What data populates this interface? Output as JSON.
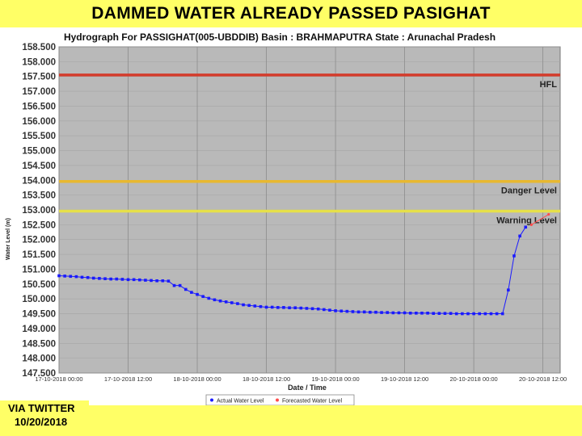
{
  "banner": {
    "headline": "DAMMED WATER ALREADY PASSED PASIGHAT"
  },
  "credit": {
    "line1": "VIA TWITTER",
    "line2": "10/20/2018"
  },
  "colors": {
    "banner": "#ffff66",
    "plot_bg": "#b9b9b9",
    "actual": "#1a1aff",
    "forecast": "#ff4d4d",
    "hfl": "#d43c2c",
    "danger": "#e8b830",
    "warning": "#e6e04a"
  },
  "chart_data": {
    "type": "line",
    "title": "Hydrograph For PASSIGHAT(005-UBDDIB) Basin : BRAHMAPUTRA State : Arunachal Pradesh",
    "xlabel": "Date / Time",
    "ylabel": "Water Level (m)",
    "ylim": [
      147.5,
      158.5
    ],
    "y_ticks": [
      "147.500",
      "148.000",
      "148.500",
      "149.000",
      "149.500",
      "150.000",
      "150.500",
      "151.000",
      "151.500",
      "152.000",
      "152.500",
      "153.000",
      "153.500",
      "154.000",
      "154.500",
      "155.000",
      "155.500",
      "156.000",
      "156.500",
      "157.000",
      "157.500",
      "158.000",
      "158.500"
    ],
    "x_ticks": [
      "17-10-2018 00:00",
      "17-10-2018 12:00",
      "18-10-2018 00:00",
      "18-10-2018 12:00",
      "19-10-2018 00:00",
      "19-10-2018 12:00",
      "20-10-2018 00:00",
      "20-10-2018 12:00"
    ],
    "x_range_hours": [
      0,
      87
    ],
    "grid": true,
    "legend_position": "bottom",
    "reference_lines": [
      {
        "name": "HFL",
        "value": 157.55
      },
      {
        "name": "Danger Level",
        "value": 153.96
      },
      {
        "name": "Warning Level",
        "value": 152.96
      }
    ],
    "series": [
      {
        "name": "Actual Water Level",
        "x": [
          0,
          1,
          2,
          3,
          4,
          5,
          6,
          7,
          8,
          9,
          10,
          11,
          12,
          13,
          14,
          15,
          16,
          17,
          18,
          19,
          20,
          21,
          22,
          23,
          24,
          25,
          26,
          27,
          28,
          29,
          30,
          31,
          32,
          33,
          34,
          35,
          36,
          37,
          38,
          39,
          40,
          41,
          42,
          43,
          44,
          45,
          46,
          47,
          48,
          49,
          50,
          51,
          52,
          53,
          54,
          55,
          56,
          57,
          58,
          59,
          60,
          61,
          62,
          63,
          64,
          65,
          66,
          67,
          68,
          69,
          70,
          71,
          72,
          73,
          74,
          75,
          76,
          77,
          78,
          79,
          80,
          81
        ],
        "values": [
          150.78,
          150.77,
          150.76,
          150.75,
          150.73,
          150.72,
          150.7,
          150.69,
          150.68,
          150.67,
          150.67,
          150.66,
          150.65,
          150.65,
          150.64,
          150.63,
          150.62,
          150.61,
          150.61,
          150.6,
          150.45,
          150.45,
          150.32,
          150.22,
          150.15,
          150.08,
          150.02,
          149.97,
          149.93,
          149.9,
          149.87,
          149.84,
          149.8,
          149.78,
          149.76,
          149.74,
          149.72,
          149.72,
          149.71,
          149.71,
          149.7,
          149.7,
          149.69,
          149.68,
          149.67,
          149.66,
          149.64,
          149.62,
          149.6,
          149.59,
          149.58,
          149.57,
          149.56,
          149.56,
          149.55,
          149.55,
          149.54,
          149.54,
          149.53,
          149.53,
          149.53,
          149.52,
          149.52,
          149.52,
          149.52,
          149.51,
          149.51,
          149.51,
          149.51,
          149.5,
          149.5,
          149.5,
          149.5,
          149.5,
          149.5,
          149.5,
          149.5,
          149.5,
          150.3,
          151.45,
          152.12,
          152.42
        ]
      },
      {
        "name": "Forecasted Water Level",
        "x": [
          82,
          85
        ],
        "values": [
          152.5,
          152.85
        ]
      }
    ]
  }
}
